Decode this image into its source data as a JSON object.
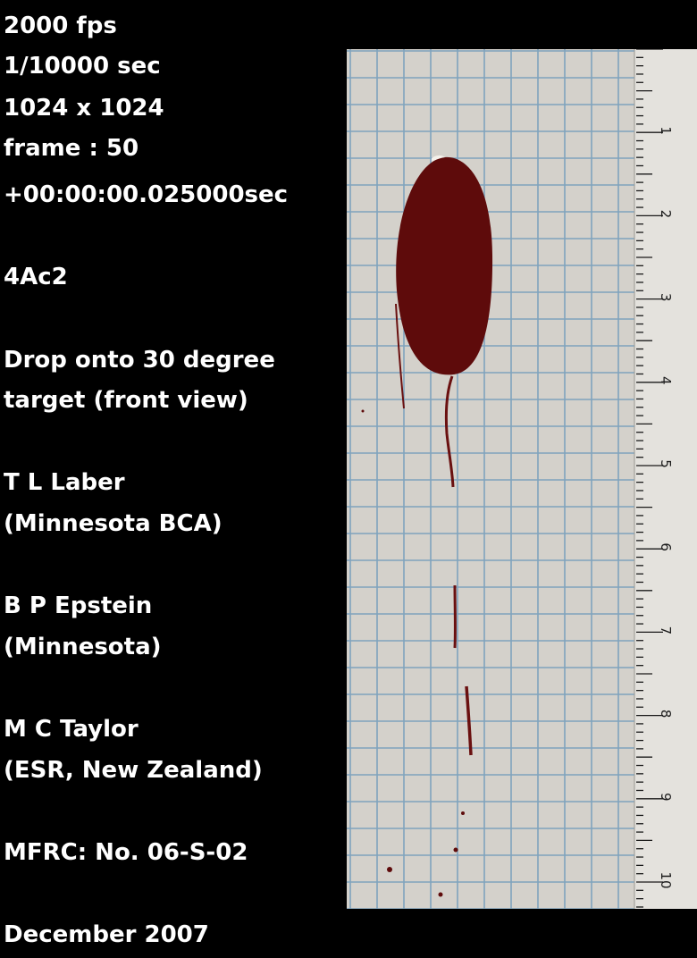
{
  "info": {
    "lines": [
      "2000 fps",
      "1/10000 sec",
      "1024 x 1024",
      "frame : 50",
      "+00:00:00.025000sec",
      "4Ac2",
      "Drop onto 30 degree",
      "target (front view)",
      "T L Laber",
      "(Minnesota BCA)",
      "B P Epstein",
      "(Minnesota)",
      "M C Taylor",
      "(ESR, New Zealand)",
      "MFRC:  No. 06-S-02",
      "December 2007"
    ]
  },
  "photo": {
    "ruler_numbers": [
      "1",
      "2",
      "3",
      "4",
      "5",
      "6",
      "7",
      "8",
      "9",
      "10"
    ],
    "colors": {
      "background": "#000000",
      "paper": "#d4d1cb",
      "grid": "#7fa3bd",
      "blood": "#5e0b0b",
      "ruler": "#e4e2dd"
    }
  }
}
